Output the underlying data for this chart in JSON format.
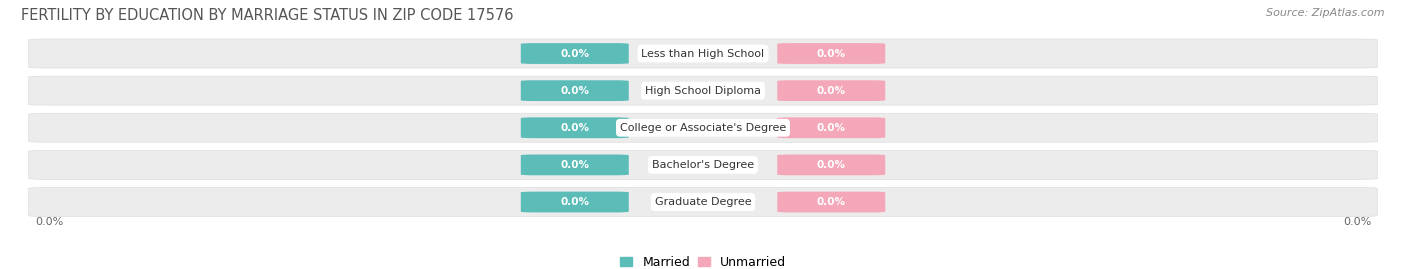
{
  "title": "FERTILITY BY EDUCATION BY MARRIAGE STATUS IN ZIP CODE 17576",
  "source": "Source: ZipAtlas.com",
  "categories": [
    "Less than High School",
    "High School Diploma",
    "College or Associate's Degree",
    "Bachelor's Degree",
    "Graduate Degree"
  ],
  "married_values": [
    0.0,
    0.0,
    0.0,
    0.0,
    0.0
  ],
  "unmarried_values": [
    0.0,
    0.0,
    0.0,
    0.0,
    0.0
  ],
  "married_color": "#5bbcb8",
  "unmarried_color": "#f4a7b9",
  "row_bg_color": "#ececec",
  "title_fontsize": 10.5,
  "source_fontsize": 8,
  "label_fontsize": 8,
  "value_fontsize": 7.5,
  "legend_fontsize": 9,
  "xlim": [
    -1.0,
    1.0
  ],
  "tick_label_left": "0.0%",
  "tick_label_right": "0.0%",
  "background_color": "#ffffff"
}
